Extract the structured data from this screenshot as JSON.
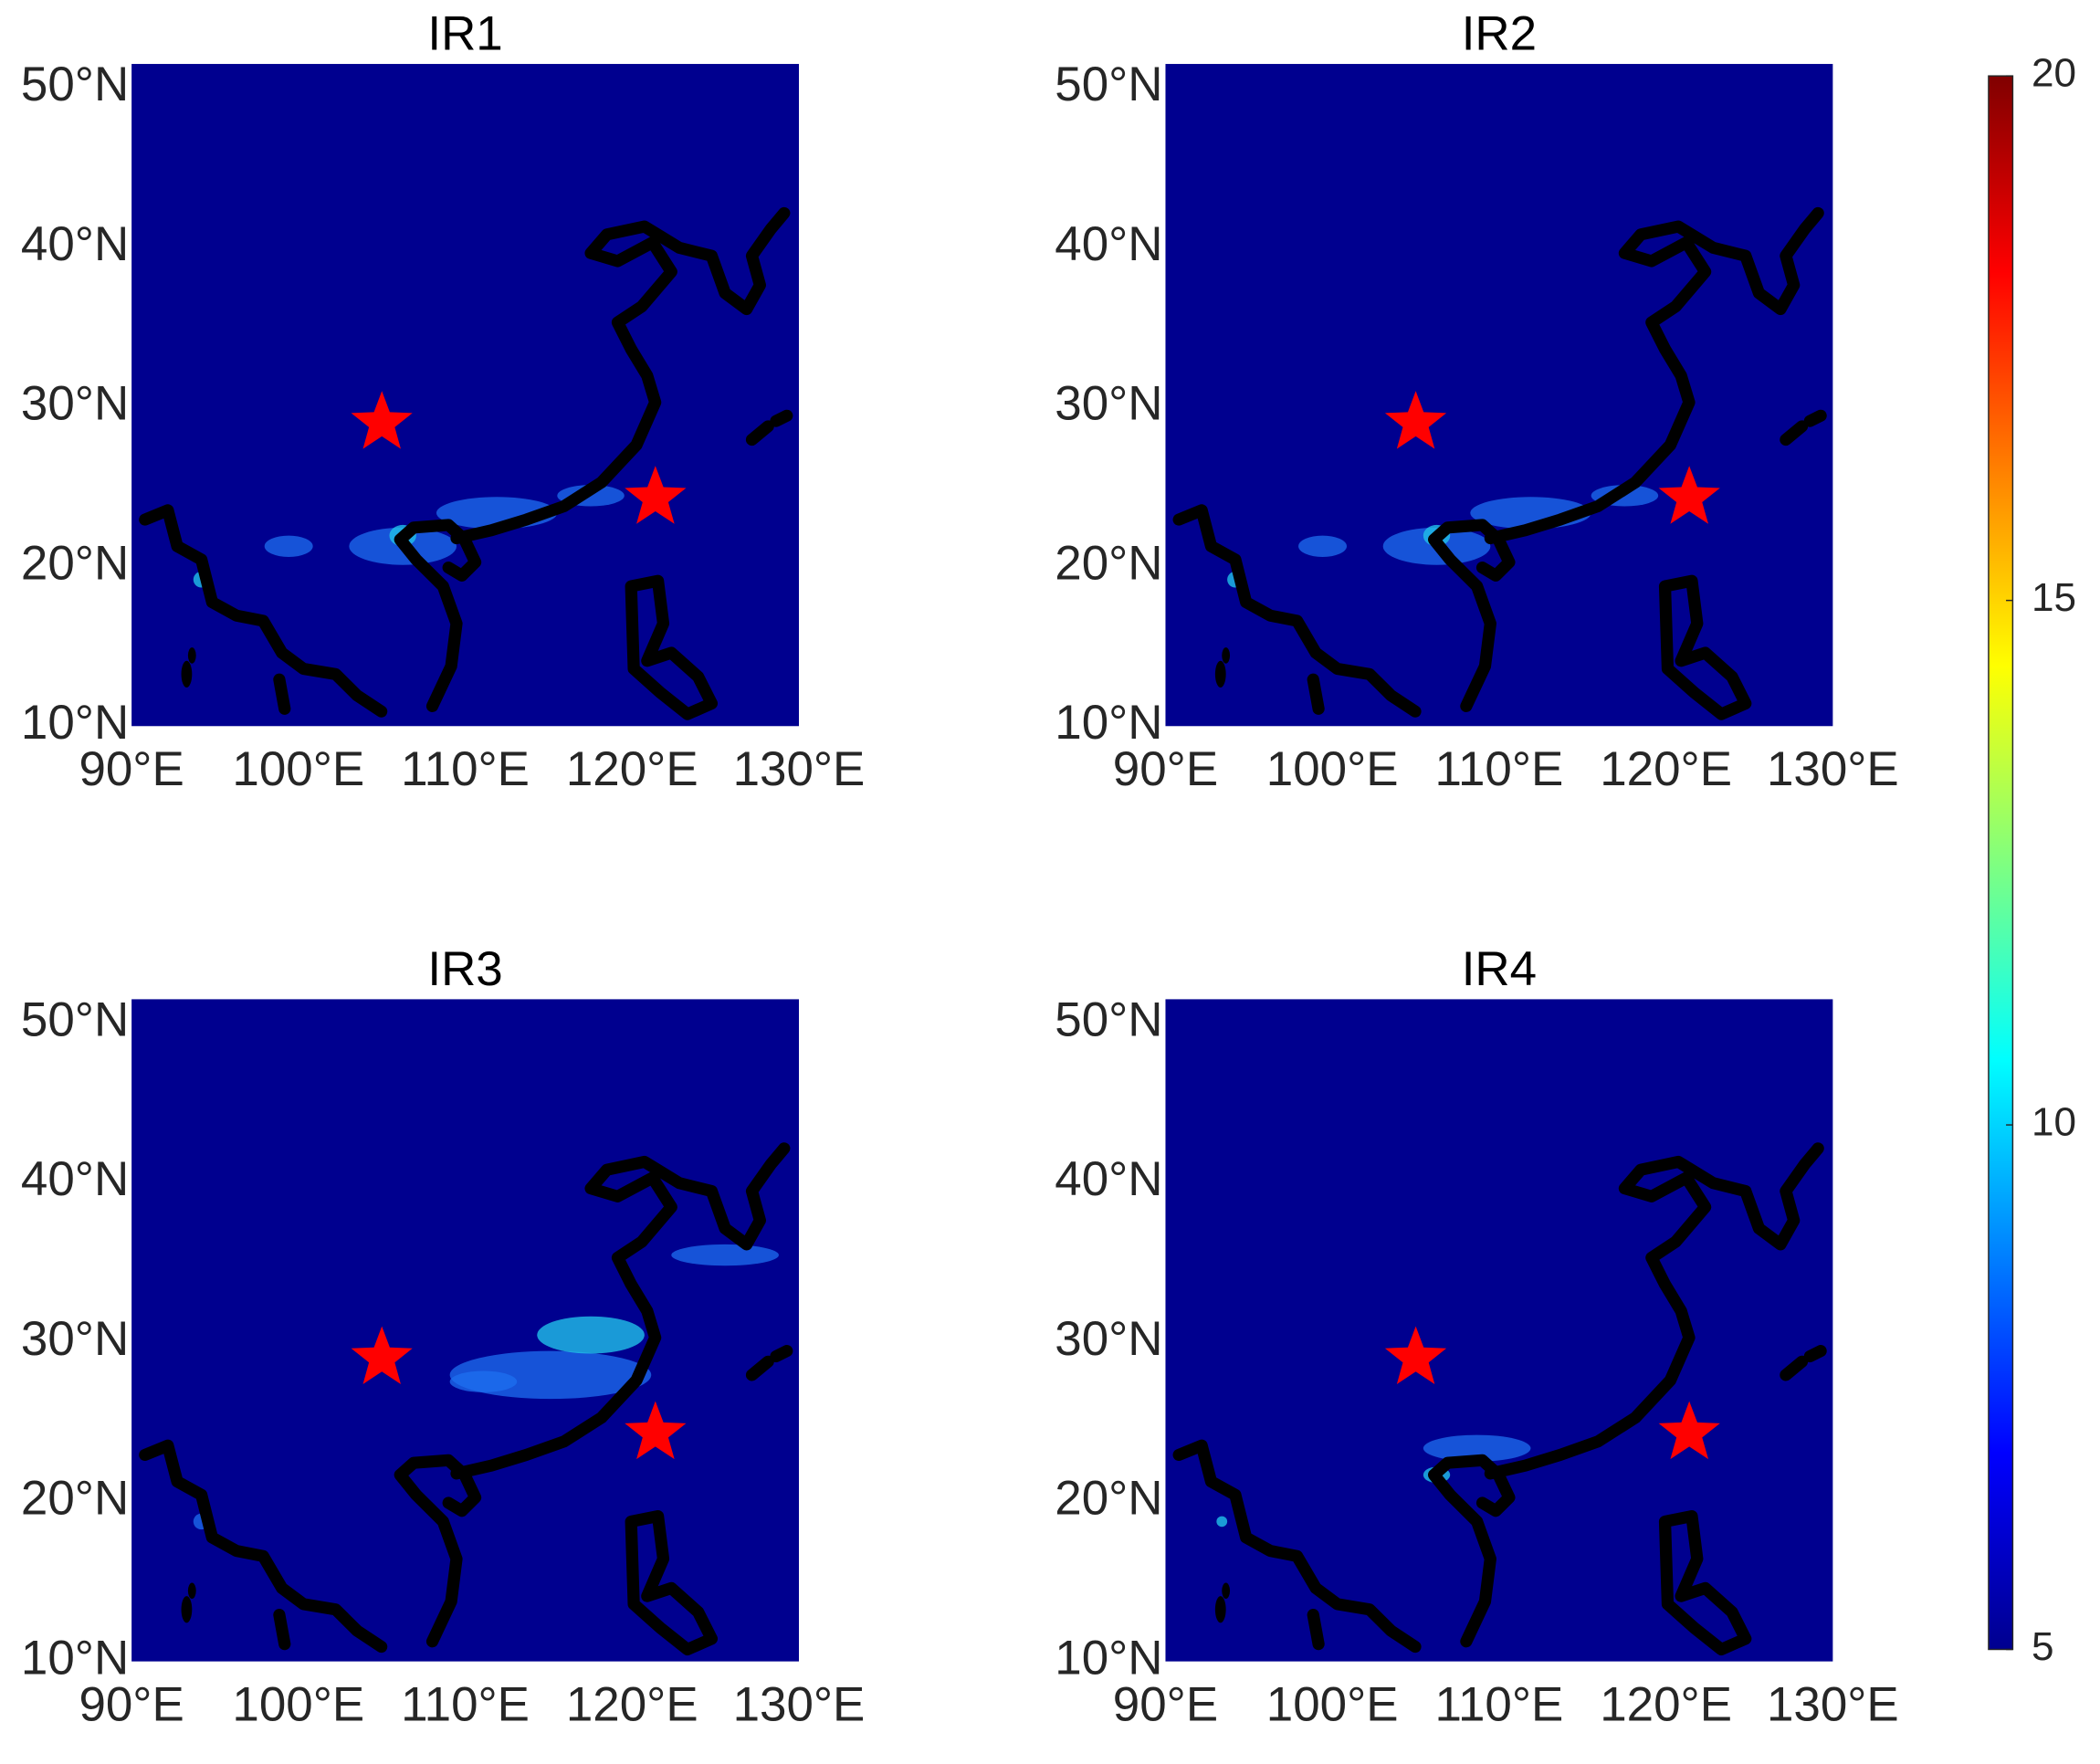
{
  "chart_data": [
    {
      "type": "map",
      "title": "IR1",
      "xlim": [
        90,
        130
      ],
      "ylim": [
        10,
        51.5
      ],
      "xticks": [
        {
          "value": 90,
          "label": "90°E"
        },
        {
          "value": 100,
          "label": "100°E"
        },
        {
          "value": 110,
          "label": "110°E"
        },
        {
          "value": 120,
          "label": "120°E"
        },
        {
          "value": 130,
          "label": "130°E"
        }
      ],
      "yticks": [
        {
          "value": 10,
          "label": "10°N"
        },
        {
          "value": 20,
          "label": "20°N"
        },
        {
          "value": 30,
          "label": "30°N"
        },
        {
          "value": 40,
          "label": "40°N"
        },
        {
          "value": 50,
          "label": "50°N"
        }
      ],
      "points": {
        "x": [
          105,
          121.4
        ],
        "y": [
          29,
          24.3
        ],
        "color": "#ff0000"
      }
    },
    {
      "type": "map",
      "title": "IR2",
      "xlim": [
        90,
        130
      ],
      "ylim": [
        10,
        51.5
      ],
      "xticks": [
        {
          "value": 90,
          "label": "90°E"
        },
        {
          "value": 100,
          "label": "100°E"
        },
        {
          "value": 110,
          "label": "110°E"
        },
        {
          "value": 120,
          "label": "120°E"
        },
        {
          "value": 130,
          "label": "130°E"
        }
      ],
      "yticks": [
        {
          "value": 10,
          "label": "10°N"
        },
        {
          "value": 20,
          "label": "20°N"
        },
        {
          "value": 30,
          "label": "30°N"
        },
        {
          "value": 40,
          "label": "40°N"
        },
        {
          "value": 50,
          "label": "50°N"
        }
      ],
      "points": {
        "x": [
          105,
          121.4
        ],
        "y": [
          29,
          24.3
        ],
        "color": "#ff0000"
      }
    },
    {
      "type": "map",
      "title": "IR3",
      "xlim": [
        90,
        130
      ],
      "ylim": [
        10,
        51.5
      ],
      "xticks": [
        {
          "value": 90,
          "label": "90°E"
        },
        {
          "value": 100,
          "label": "100°E"
        },
        {
          "value": 110,
          "label": "110°E"
        },
        {
          "value": 120,
          "label": "120°E"
        },
        {
          "value": 130,
          "label": "130°E"
        }
      ],
      "yticks": [
        {
          "value": 10,
          "label": "10°N"
        },
        {
          "value": 20,
          "label": "20°N"
        },
        {
          "value": 30,
          "label": "30°N"
        },
        {
          "value": 40,
          "label": "40°N"
        },
        {
          "value": 50,
          "label": "50°N"
        }
      ],
      "points": {
        "x": [
          105,
          121.4
        ],
        "y": [
          29,
          24.3
        ],
        "color": "#ff0000"
      }
    },
    {
      "type": "map",
      "title": "IR4",
      "xlim": [
        90,
        130
      ],
      "ylim": [
        10,
        51.5
      ],
      "xticks": [
        {
          "value": 90,
          "label": "90°E"
        },
        {
          "value": 100,
          "label": "100°E"
        },
        {
          "value": 110,
          "label": "110°E"
        },
        {
          "value": 120,
          "label": "120°E"
        },
        {
          "value": 130,
          "label": "130°E"
        }
      ],
      "yticks": [
        {
          "value": 10,
          "label": "10°N"
        },
        {
          "value": 20,
          "label": "20°N"
        },
        {
          "value": 30,
          "label": "30°N"
        },
        {
          "value": 40,
          "label": "40°N"
        },
        {
          "value": 50,
          "label": "50°N"
        }
      ],
      "points": {
        "x": [
          105,
          121.4
        ],
        "y": [
          29,
          24.3
        ],
        "color": "#ff0000"
      }
    },
    {
      "type": "colorbar",
      "colormap": "jet",
      "ylim": [
        5,
        20
      ],
      "yticks": [
        5,
        10,
        15,
        20
      ]
    }
  ]
}
